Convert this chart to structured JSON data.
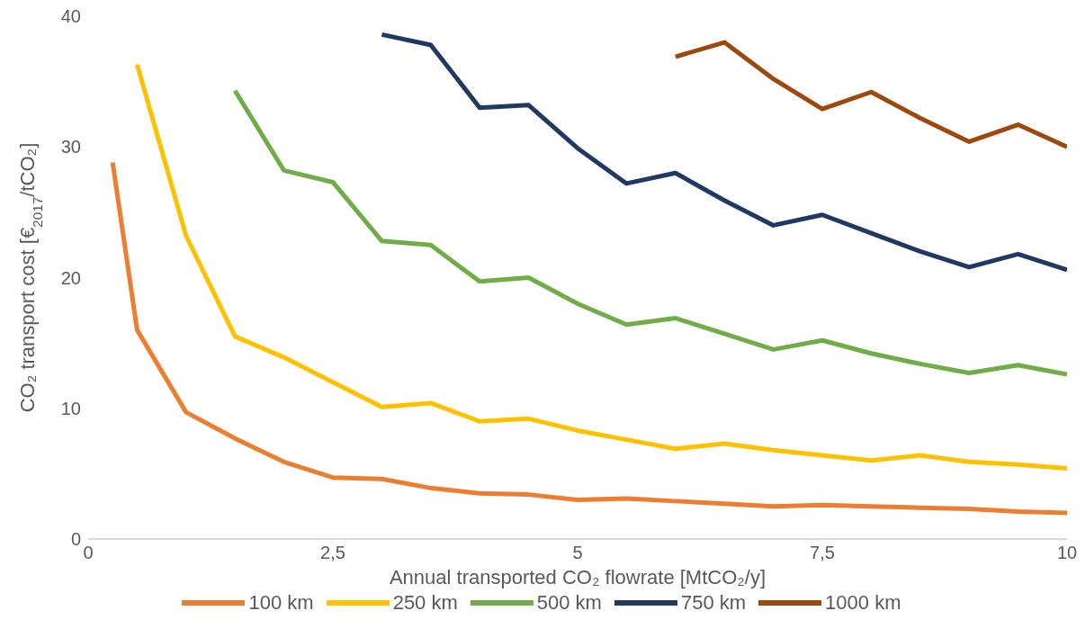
{
  "chart_data": {
    "type": "line",
    "xlabel": "Annual transported CO₂ flowrate [MtCO₂/y]",
    "ylabel": "CO₂ transport cost [€$_{2017}$/tCO₂]",
    "x": [
      0.25,
      0.5,
      1,
      1.5,
      2,
      2.5,
      3,
      3.5,
      4,
      4.5,
      5,
      5.5,
      6,
      6.5,
      7,
      7.5,
      8,
      8.5,
      9,
      9.5,
      10
    ],
    "series": [
      {
        "name": "100 km",
        "color": "#ed7d31",
        "values": [
          28.8,
          16.0,
          9.7,
          7.7,
          5.9,
          4.7,
          4.6,
          3.9,
          3.5,
          3.4,
          3.0,
          3.1,
          2.9,
          2.7,
          2.5,
          2.6,
          2.5,
          2.4,
          2.3,
          2.1,
          2.0
        ]
      },
      {
        "name": "250 km",
        "color": "#ffc000",
        "values": [
          null,
          36.3,
          23.2,
          15.5,
          13.9,
          12.0,
          10.1,
          10.4,
          9.0,
          9.2,
          8.3,
          7.6,
          6.9,
          7.3,
          6.8,
          6.4,
          6.0,
          6.4,
          5.9,
          5.7,
          5.4
        ]
      },
      {
        "name": "500 km",
        "color": "#70ad47",
        "values": [
          null,
          null,
          null,
          34.3,
          28.2,
          27.3,
          22.8,
          22.5,
          19.7,
          20.0,
          18.0,
          16.4,
          16.9,
          15.7,
          14.5,
          15.2,
          14.2,
          13.4,
          12.7,
          13.3,
          12.6
        ]
      },
      {
        "name": "750 km",
        "color": "#203864",
        "values": [
          null,
          null,
          null,
          null,
          null,
          null,
          38.6,
          37.8,
          33.0,
          33.2,
          29.9,
          27.2,
          28.0,
          25.9,
          24.0,
          24.8,
          23.4,
          22.0,
          20.8,
          21.8,
          20.6
        ]
      },
      {
        "name": "1000 km",
        "color": "#9e480e",
        "values": [
          null,
          null,
          null,
          null,
          null,
          null,
          null,
          null,
          null,
          null,
          null,
          null,
          36.9,
          38.0,
          35.2,
          32.9,
          34.2,
          32.2,
          30.4,
          31.7,
          30.0
        ]
      }
    ],
    "xlim": [
      0,
      10
    ],
    "xticks": [
      0,
      {
        "value": 2.5,
        "label": "2,5"
      },
      5,
      {
        "value": 7.5,
        "label": "7,5"
      },
      10
    ],
    "ylim": [
      0,
      40
    ],
    "yticks": [
      0,
      10,
      20,
      30,
      40
    ],
    "grid": false,
    "legend": "bottom",
    "marker": "none",
    "line_style": "solid"
  }
}
